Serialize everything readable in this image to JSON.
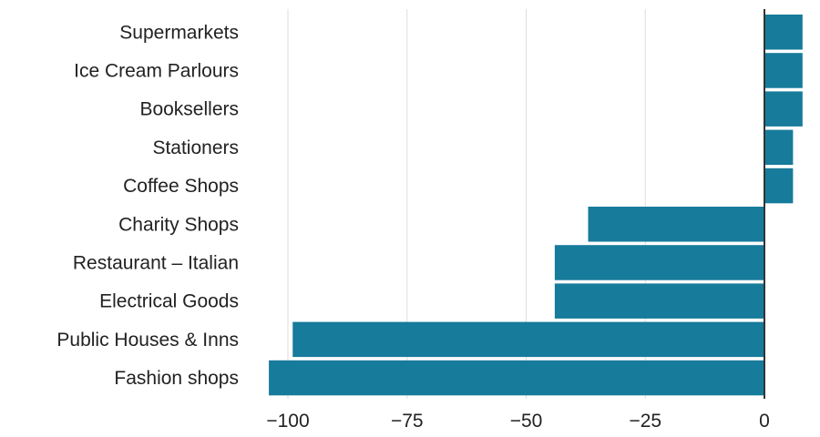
{
  "chart_data": {
    "type": "bar",
    "orientation": "horizontal",
    "title": "",
    "xlabel": "",
    "ylabel": "",
    "categories": [
      "Supermarkets",
      "Ice Cream Parlours",
      "Booksellers",
      "Stationers",
      "Coffee Shops",
      "Charity Shops",
      "Restaurant – Italian",
      "Electrical Goods",
      "Public Houses & Inns",
      "Fashion shops"
    ],
    "values": [
      8,
      8,
      8,
      6,
      6,
      -37,
      -44,
      -44,
      -99,
      -104
    ],
    "xlim": [
      -105,
      9
    ],
    "xticks": [
      -100,
      -75,
      -50,
      -25,
      0
    ],
    "xtick_labels": [
      "−100",
      "−75",
      "−50",
      "−25",
      "0"
    ],
    "grid": true,
    "legend": "none",
    "colors": {
      "bar": "#177b9b",
      "zero_line": "#333333",
      "grid": "#dddddd"
    }
  }
}
